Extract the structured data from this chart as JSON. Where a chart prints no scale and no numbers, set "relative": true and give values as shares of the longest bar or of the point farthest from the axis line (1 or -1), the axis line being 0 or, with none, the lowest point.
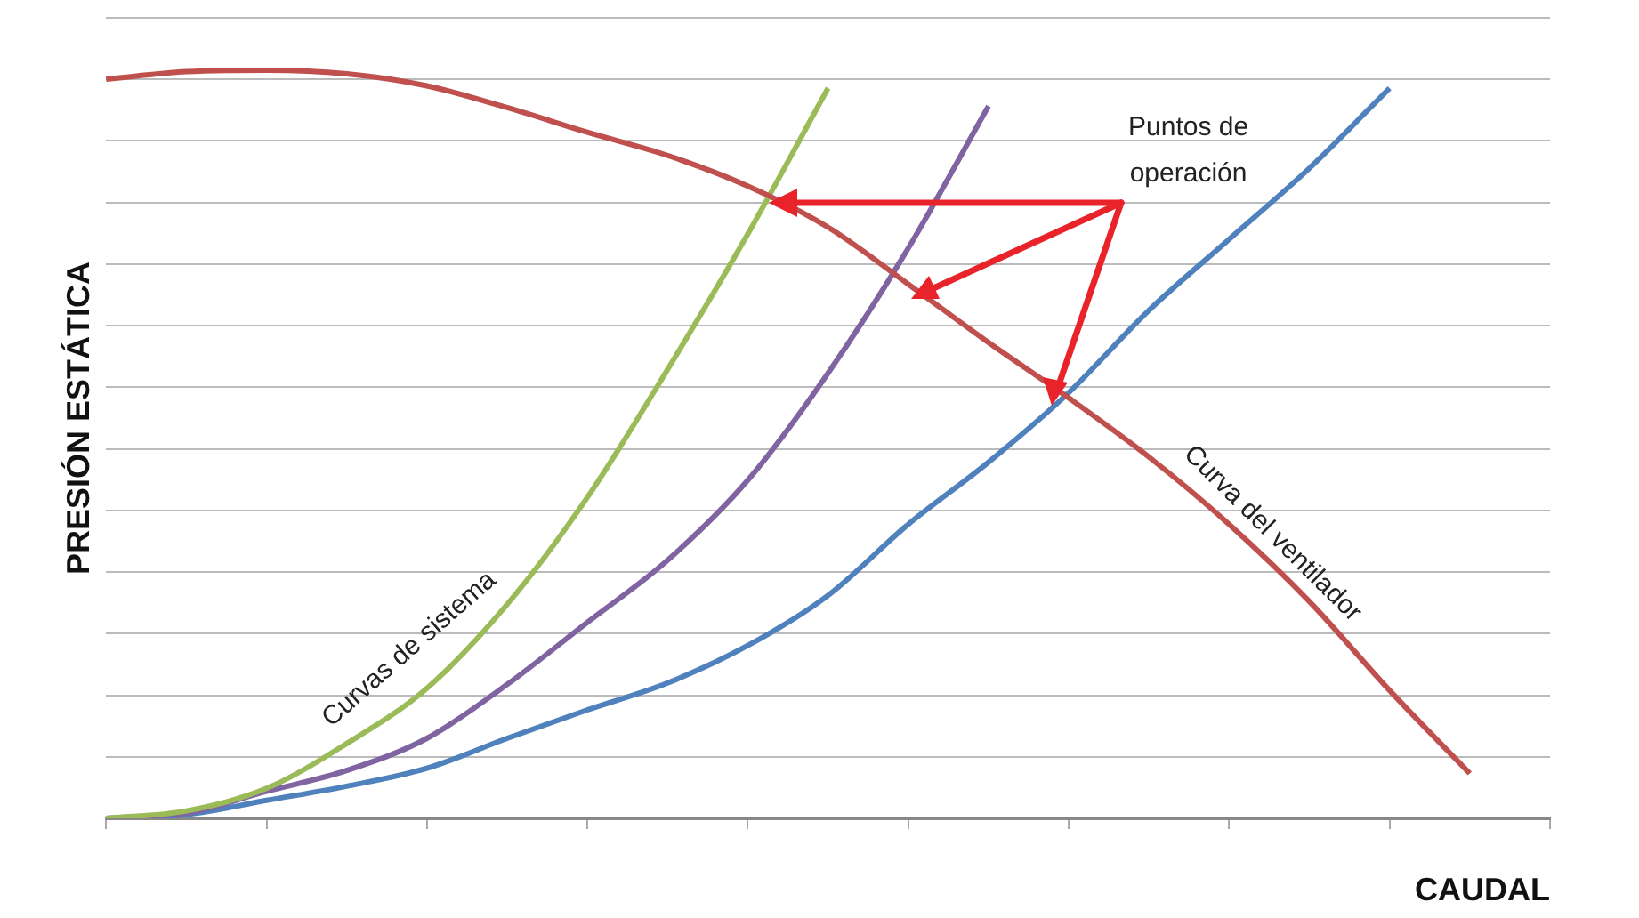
{
  "chart_data": {
    "type": "line",
    "relative": true,
    "xlabel": "CAUDAL",
    "ylabel": "PRESIÓN ESTÁTICA",
    "categories": [
      null,
      null,
      null,
      null,
      null,
      null,
      null,
      null,
      null,
      null,
      null,
      null,
      null,
      null,
      null,
      null,
      null,
      null,
      null
    ],
    "series": [
      {
        "color": "#c0504d",
        "values": [
          0.988,
          0.998,
          1,
          0.995,
          0.979,
          0.95,
          0.917,
          0.886,
          0.845,
          0.79,
          0.714,
          0.636,
          0.562,
          0.483,
          0.393,
          0.29,
          0.171,
          0.06,
          null
        ]
      },
      {
        "color": "#9bbb59",
        "values": [
          0,
          0.01,
          0.04,
          0.1,
          0.174,
          0.286,
          0.429,
          0.6,
          0.781,
          0.976,
          null,
          null,
          null,
          null,
          null,
          null,
          null,
          null,
          null
        ]
      },
      {
        "color": "#8064a2",
        "values": [
          0,
          0.007,
          0.036,
          0.064,
          0.107,
          0.179,
          0.262,
          0.345,
          0.452,
          0.595,
          0.762,
          0.952,
          null,
          null,
          null,
          null,
          null,
          null,
          null
        ]
      },
      {
        "color": "#4f81bd",
        "values": [
          0,
          0.005,
          0.024,
          0.043,
          0.067,
          0.107,
          0.145,
          0.181,
          0.231,
          0.298,
          0.393,
          0.476,
          0.569,
          0.679,
          0.774,
          0.869,
          0.976,
          null,
          null
        ]
      }
    ],
    "annotations": [
      "Puntos de operación",
      "Curvas de sistema",
      "Curva del ventilador"
    ],
    "grid": "y",
    "legend": false,
    "marker": "none",
    "line_style": "solid"
  }
}
